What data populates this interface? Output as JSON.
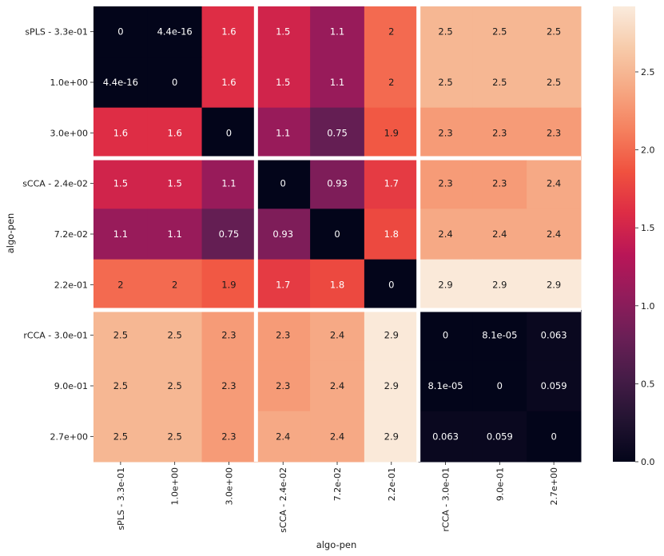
{
  "chart_data": {
    "type": "heatmap",
    "title": "",
    "xlabel": "algo-pen",
    "ylabel": "algo-pen",
    "categories": [
      "sPLS - 3.3e-01",
      "1.0e+00",
      "3.0e+00",
      "sCCA - 2.4e-02",
      "7.2e-02",
      "2.2e-01",
      "rCCA - 3.0e-01",
      "9.0e-01",
      "2.7e+00"
    ],
    "group_size": 3,
    "values": [
      [
        0,
        4.4e-16,
        1.6,
        1.5,
        1.1,
        2.0,
        2.5,
        2.5,
        2.5
      ],
      [
        4.4e-16,
        0,
        1.6,
        1.5,
        1.1,
        2.0,
        2.5,
        2.5,
        2.5
      ],
      [
        1.6,
        1.6,
        0,
        1.1,
        0.75,
        1.9,
        2.3,
        2.3,
        2.3
      ],
      [
        1.5,
        1.5,
        1.1,
        0,
        0.93,
        1.7,
        2.3,
        2.3,
        2.4
      ],
      [
        1.1,
        1.1,
        0.75,
        0.93,
        0,
        1.8,
        2.4,
        2.4,
        2.4
      ],
      [
        2.0,
        2.0,
        1.9,
        1.7,
        1.8,
        0,
        2.9,
        2.9,
        2.9
      ],
      [
        2.5,
        2.5,
        2.3,
        2.3,
        2.4,
        2.9,
        0,
        8.1e-05,
        0.063
      ],
      [
        2.5,
        2.5,
        2.3,
        2.3,
        2.4,
        2.9,
        8.1e-05,
        0,
        0.059
      ],
      [
        2.5,
        2.5,
        2.3,
        2.4,
        2.4,
        2.9,
        0.063,
        0.059,
        0
      ]
    ],
    "annotations": [
      [
        "0",
        "4.4e-16",
        "1.6",
        "1.5",
        "1.1",
        "2",
        "2.5",
        "2.5",
        "2.5"
      ],
      [
        "4.4e-16",
        "0",
        "1.6",
        "1.5",
        "1.1",
        "2",
        "2.5",
        "2.5",
        "2.5"
      ],
      [
        "1.6",
        "1.6",
        "0",
        "1.1",
        "0.75",
        "1.9",
        "2.3",
        "2.3",
        "2.3"
      ],
      [
        "1.5",
        "1.5",
        "1.1",
        "0",
        "0.93",
        "1.7",
        "2.3",
        "2.3",
        "2.4"
      ],
      [
        "1.1",
        "1.1",
        "0.75",
        "0.93",
        "0",
        "1.8",
        "2.4",
        "2.4",
        "2.4"
      ],
      [
        "2",
        "2",
        "1.9",
        "1.7",
        "1.8",
        "0",
        "2.9",
        "2.9",
        "2.9"
      ],
      [
        "2.5",
        "2.5",
        "2.3",
        "2.3",
        "2.4",
        "2.9",
        "0",
        "8.1e-05",
        "0.063"
      ],
      [
        "2.5",
        "2.5",
        "2.3",
        "2.3",
        "2.4",
        "2.9",
        "8.1e-05",
        "0",
        "0.059"
      ],
      [
        "2.5",
        "2.5",
        "2.3",
        "2.4",
        "2.4",
        "2.9",
        "0.063",
        "0.059",
        "0"
      ]
    ],
    "colorbar": {
      "range": [
        0,
        2.92
      ],
      "ticks": [
        0.0,
        0.5,
        1.0,
        1.5,
        2.0,
        2.5
      ],
      "tick_labels": [
        "0.0",
        "0.5",
        "1.0",
        "1.5",
        "2.0",
        "2.5"
      ],
      "colormap": "rocket",
      "colormap_stops": [
        "#03051a",
        "#221331",
        "#451c47",
        "#6a1f56",
        "#921c5b",
        "#b91657",
        "#dd2c45",
        "#f0513f",
        "#f5805e",
        "#f6a883",
        "#f7cbaa",
        "#faebdd"
      ]
    },
    "group_separator_color": "#ffffff"
  }
}
